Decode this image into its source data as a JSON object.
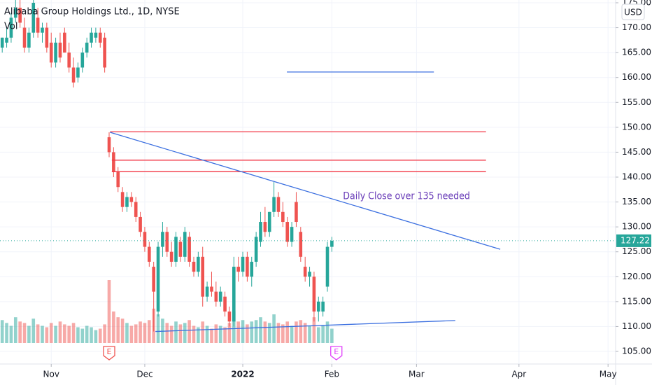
{
  "chart_data": {
    "type": "candlestick",
    "title": "Alibaba Group Holdings Ltd., 1D, NYSE",
    "subtitle": "Vol",
    "currency": "USD",
    "up_color": "#26a69a",
    "down_color": "#ef5350",
    "open": [
      166,
      167,
      168,
      172,
      174,
      170,
      166,
      169,
      172,
      169,
      170,
      167,
      163,
      167,
      169,
      165,
      162,
      160,
      162,
      165,
      167,
      168,
      169,
      168,
      148,
      145,
      141,
      137,
      134,
      136,
      135,
      132,
      129,
      126,
      122,
      113,
      126,
      129,
      125,
      123,
      127,
      124,
      128,
      123,
      121,
      124,
      116,
      118,
      117,
      115,
      116,
      113,
      111,
      122,
      121,
      124,
      120,
      123,
      127,
      131,
      129,
      133,
      136,
      133,
      131,
      127,
      135,
      129,
      122,
      120,
      120,
      113,
      113,
      118,
      126
    ],
    "high": [
      168,
      170,
      173,
      176,
      176,
      172,
      170,
      176,
      174,
      171,
      171,
      169,
      168,
      169,
      170,
      167,
      164,
      163,
      166,
      168,
      170,
      170,
      170,
      169,
      149,
      146,
      142,
      138,
      137,
      137,
      136,
      133,
      130,
      127,
      123,
      127,
      131,
      130,
      127,
      129,
      128,
      130,
      129,
      124,
      125,
      126,
      119,
      121,
      119,
      118,
      117,
      114,
      124,
      124,
      125,
      125,
      124,
      129,
      133,
      134,
      133,
      139,
      137,
      135,
      132,
      131,
      137,
      130,
      124,
      122,
      121,
      116,
      116,
      127,
      128
    ],
    "low": [
      165,
      166,
      167,
      171,
      170,
      165,
      165,
      168,
      168,
      167,
      165,
      162,
      162,
      163,
      165,
      161,
      158,
      159,
      161,
      164,
      166,
      167,
      166,
      161,
      144,
      140,
      137,
      133,
      133,
      134,
      131,
      128,
      125,
      122,
      109,
      112,
      124,
      124,
      122,
      122,
      123,
      123,
      122,
      120,
      120,
      114,
      115,
      116,
      114,
      114,
      112,
      110,
      110,
      119,
      120,
      119,
      118,
      122,
      126,
      128,
      128,
      132,
      132,
      130,
      126,
      126,
      130,
      123,
      119,
      118,
      111,
      111,
      112,
      117,
      125
    ],
    "close": [
      168,
      168,
      172,
      174,
      171,
      166,
      169,
      175,
      169,
      170,
      166,
      163,
      167,
      164,
      165,
      162,
      159,
      162,
      165,
      167,
      169,
      169,
      167,
      162,
      145,
      141,
      138,
      134,
      136,
      135,
      132,
      129,
      126,
      123,
      117,
      126,
      129,
      125,
      123,
      128,
      124,
      129,
      123,
      121,
      124,
      116,
      118,
      117,
      115,
      117,
      113,
      111,
      122,
      121,
      124,
      120,
      123,
      128,
      131,
      129,
      133,
      136,
      133,
      131,
      127,
      130,
      131,
      124,
      120,
      121,
      113,
      115,
      115,
      126,
      127.22
    ],
    "volume": [
      16,
      14,
      12,
      18,
      15,
      14,
      12,
      17,
      13,
      12,
      11,
      14,
      12,
      15,
      13,
      12,
      14,
      11,
      10,
      12,
      11,
      9,
      10,
      13,
      44,
      22,
      18,
      17,
      14,
      12,
      13,
      15,
      14,
      16,
      24,
      20,
      17,
      14,
      12,
      15,
      13,
      14,
      16,
      12,
      11,
      15,
      12,
      10,
      13,
      12,
      11,
      14,
      22,
      15,
      16,
      13,
      15,
      16,
      18,
      15,
      14,
      20,
      14,
      13,
      15,
      12,
      15,
      16,
      14,
      12,
      18,
      11,
      12,
      15,
      10
    ],
    "last_price": 127.22,
    "xlim": [
      -0.5,
      137.7
    ],
    "ylim": [
      102.47,
      175.56
    ],
    "xticks": [
      {
        "value": 11,
        "label": "Nov"
      },
      {
        "value": 32,
        "label": "Dec"
      },
      {
        "value": 54,
        "label": "2022"
      },
      {
        "value": 74,
        "label": "Feb"
      },
      {
        "value": 93,
        "label": "Mar"
      },
      {
        "value": 116,
        "label": "Apr"
      },
      {
        "value": 136,
        "label": "May"
      }
    ],
    "yticks": [
      {
        "value": 105,
        "label": "105.00"
      },
      {
        "value": 110,
        "label": "110.00"
      },
      {
        "value": 115,
        "label": "115.00"
      },
      {
        "value": 120,
        "label": "120.00"
      },
      {
        "value": 125,
        "label": "125.00"
      },
      {
        "value": 130,
        "label": "130.00"
      },
      {
        "value": 135,
        "label": "135.00"
      },
      {
        "value": 140,
        "label": "140.00"
      },
      {
        "value": 145,
        "label": "145.00"
      },
      {
        "value": 150,
        "label": "150.00"
      },
      {
        "value": 155,
        "label": "155.00"
      },
      {
        "value": 160,
        "label": "160.00"
      },
      {
        "value": 165,
        "label": "165.00"
      },
      {
        "value": 170,
        "label": "170.00"
      },
      {
        "value": 175,
        "label": "175.00"
      }
    ],
    "grid": true,
    "lines": [
      {
        "x": [
          63.9,
          96.9
        ],
        "y": [
          161.1,
          161.1
        ],
        "color": "#3b6fe0"
      },
      {
        "x": [
          24.2,
          108.6
        ],
        "y": [
          149.1,
          149.1
        ],
        "color": "#f23645"
      },
      {
        "x": [
          24.6,
          108.6
        ],
        "y": [
          143.4,
          143.4
        ],
        "color": "#f23645"
      },
      {
        "x": [
          24.6,
          108.6
        ],
        "y": [
          141.1,
          141.1
        ],
        "color": "#f23645"
      },
      {
        "x": [
          24.2,
          111.8
        ],
        "y": [
          149.0,
          125.5
        ],
        "color": "#3b6fe0"
      },
      {
        "x": [
          34.4,
          101.7
        ],
        "y": [
          109.0,
          111.2
        ],
        "color": "#3b6fe0"
      }
    ],
    "annotations": [
      {
        "text": "Daily Close over 135 needed",
        "x": 76.5,
        "y": 136.1,
        "color": "#673ab7"
      }
    ],
    "events": [
      {
        "x": 24,
        "label": "E",
        "color": "#ef5350"
      },
      {
        "x": 75,
        "label": "E",
        "color": "#e040fb"
      }
    ]
  }
}
